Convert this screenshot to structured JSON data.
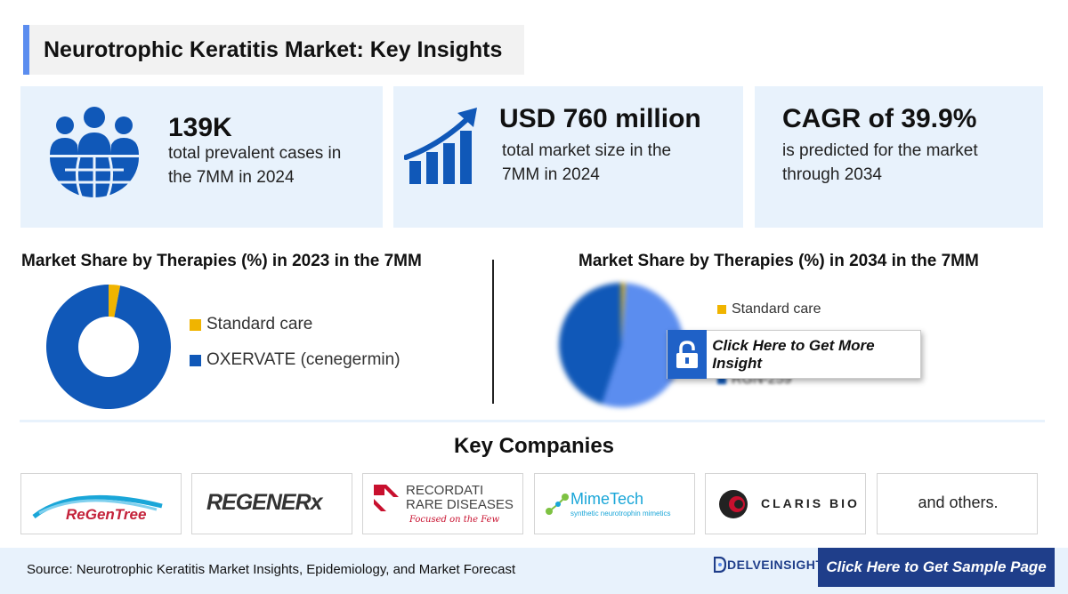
{
  "title": "Neurotrophic Keratitis Market: Key Insights",
  "stats": [
    {
      "big": "139K",
      "sub1": "total prevalent cases in",
      "sub2": "the 7MM in 2024",
      "icon": "people-globe-icon"
    },
    {
      "big": "USD 760 million",
      "sub1": "total market size in the",
      "sub2": "7MM in 2024",
      "icon": "growth-chart-icon"
    },
    {
      "big": "CAGR of 39.9%",
      "sub1": "is predicted for the market",
      "sub2": "through 2034",
      "icon": ""
    }
  ],
  "chart_data": [
    {
      "type": "pie",
      "variant": "donut",
      "title": "Market Share by Therapies (%) in 2023 in the 7MM",
      "categories": [
        "Standard care",
        "OXERVATE (cenegermin)"
      ],
      "values": [
        3,
        97
      ],
      "colors": [
        "#f0b400",
        "#1058b8"
      ],
      "legend": "right"
    },
    {
      "type": "pie",
      "title": "Market Share by Therapies (%) in 2034 in the 7MM",
      "categories": [
        "Standard care",
        "",
        "RGN-259"
      ],
      "values": [
        1,
        54,
        45
      ],
      "colors": [
        "#f0b400",
        "#5b8def",
        "#1058b8"
      ],
      "legend": "right",
      "obscured": true
    }
  ],
  "insight_button": "Click Here to Get More Insight",
  "key_companies_title": "Key Companies",
  "companies": [
    "ReGenTree",
    "REGENERx",
    "RECORDATI",
    "RARE DISEASES",
    "Focused on the Few",
    "MimeTech",
    "synthetic neurotrophin mimetics",
    "CLARIS BIO",
    "and others."
  ],
  "footer": {
    "source": "Source: Neurotrophic Keratitis Market Insights, Epidemiology, and Market Forecast",
    "brand": "DELVEINSIGHT",
    "sample_button": "Click Here to Get Sample Page"
  },
  "colors": {
    "accent": "#5b8def",
    "navy": "#1f3e8a",
    "blue": "#1058b8",
    "orange": "#f0b400",
    "panel": "#e8f2fc"
  }
}
